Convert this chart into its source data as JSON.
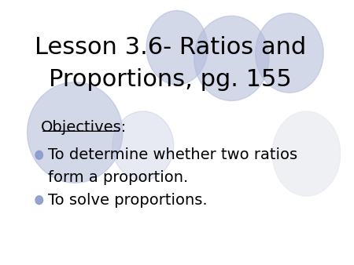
{
  "title_line1": "Lesson 3.6- Ratios and",
  "title_line2": "Proportions, pg. 155",
  "objectives_label": "Objectives:",
  "bullet1_line1": "To determine whether two ratios",
  "bullet1_line2": "form a proportion.",
  "bullet2": "To solve proportions.",
  "bg_color": "#ffffff",
  "text_color": "#000000",
  "title_fontsize": 22,
  "body_fontsize": 14,
  "objectives_fontsize": 14,
  "ellipse_color": "#b0b8d8",
  "ellipse_alpha": 0.55,
  "bullet_color": "#8899cc"
}
